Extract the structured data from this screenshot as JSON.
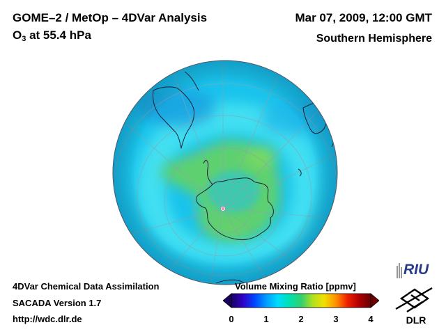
{
  "header": {
    "title_line1": "GOME–2 / MetOp – 4DVar Analysis",
    "species_prefix": "O",
    "species_subscript": "3",
    "species_level": " at 55.4 hPa",
    "datetime": "Mar 07, 2009, 12:00 GMT",
    "region": "Southern Hemisphere"
  },
  "map": {
    "projection": "orthographic, south polar view",
    "field": "Volume Mixing Ratio",
    "pole_marker_color": "#ff7fbf"
  },
  "colorbar": {
    "title": "Volume Mixing Ratio [ppmv]",
    "ticks": [
      "0",
      "1",
      "2",
      "3",
      "4"
    ],
    "min": 0,
    "max": 4,
    "colors": [
      "#1a0060",
      "#3200c8",
      "#0046ff",
      "#009cff",
      "#00dcff",
      "#00e0b0",
      "#30d070",
      "#b0e020",
      "#f0e000",
      "#ff9000",
      "#f02000",
      "#b00000",
      "#6a0000"
    ]
  },
  "footer": {
    "line1": "4DVar Chemical Data Assimilation",
    "line2": "SACADA Version 1.7",
    "line3": "http://wdc.dlr.de"
  },
  "logos": {
    "riu_text": "RIU",
    "dlr_text": "DLR"
  }
}
